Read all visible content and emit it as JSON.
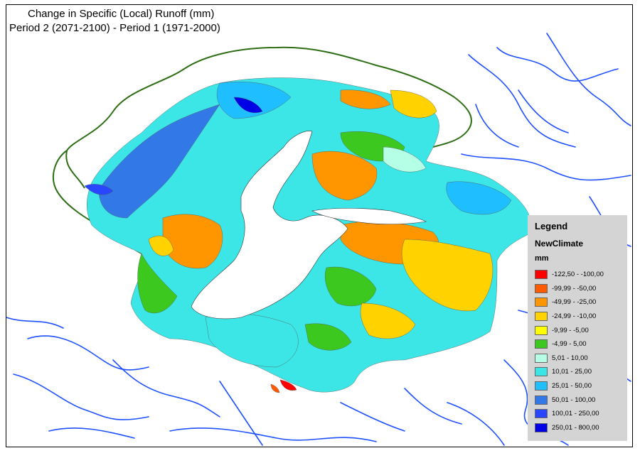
{
  "title": {
    "line1": "Change in Specific (Local) Runoff (mm)",
    "line2": "Period 2 (2071-2100) - Period 1 (1971-2000)"
  },
  "legend": {
    "title": "Legend",
    "layer": "NewClimate",
    "unit": "mm",
    "classes": [
      {
        "label": "-122,50 - -100,00",
        "color": "#ff0000"
      },
      {
        "label": "-99,99 - -50,00",
        "color": "#ff5a00"
      },
      {
        "label": "-49,99 - -25,00",
        "color": "#ff9600"
      },
      {
        "label": "-24,99 - -10,00",
        "color": "#ffd200"
      },
      {
        "label": "-9,99 - -5,00",
        "color": "#ffff00"
      },
      {
        "label": "-4,99 - 5,00",
        "color": "#3cc81e"
      },
      {
        "label": "5,01 - 10,00",
        "color": "#b4ffe6"
      },
      {
        "label": "10,01 - 25,00",
        "color": "#3ce6e6"
      },
      {
        "label": "25,01 - 50,00",
        "color": "#1ebeff"
      },
      {
        "label": "50,01 - 100,00",
        "color": "#3278e6"
      },
      {
        "label": "100,01 - 250,00",
        "color": "#2846ff"
      },
      {
        "label": "250,01 - 800,00",
        "color": "#0000e6"
      }
    ]
  },
  "map_colors": {
    "coastline": "#2d6e14",
    "rivers": "#1e50ff",
    "lake": "#ffffff"
  }
}
